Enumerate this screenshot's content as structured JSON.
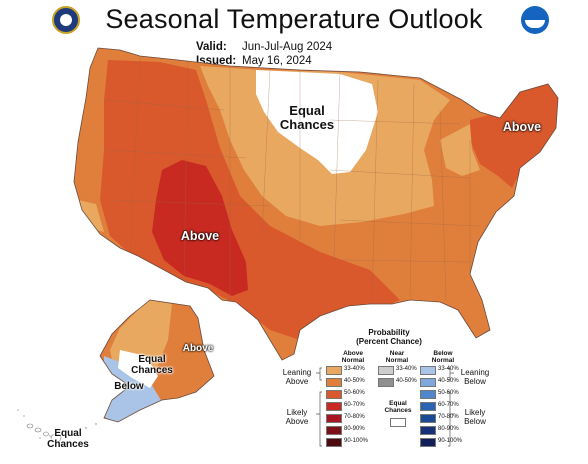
{
  "title": "Seasonal Temperature Outlook",
  "valid_label": "Valid:",
  "valid_value": "Jun-Jul-Aug 2024",
  "issued_label": "Issued:",
  "issued_value": "May 16, 2024",
  "logos": {
    "left": "doc-seal-icon",
    "right": "noaa-logo-icon"
  },
  "map_labels": {
    "equal_chances_north": [
      "Equal",
      "Chances"
    ],
    "above_northeast": "Above",
    "above_southwest": "Above",
    "alaska_above": "Above",
    "alaska_equal_chances": [
      "Equal",
      "Chances"
    ],
    "alaska_below": "Below",
    "hawaii_equal_chances": [
      "Equal",
      "Chances"
    ]
  },
  "legend": {
    "title": [
      "Probability",
      "(Percent Chance)"
    ],
    "col_above": [
      "Above",
      "Normal"
    ],
    "col_near": [
      "Near",
      "Normal"
    ],
    "col_below": [
      "Below",
      "Normal"
    ],
    "leaning_above": [
      "Leaning",
      "Above"
    ],
    "likely_above": [
      "Likely",
      "Above"
    ],
    "leaning_below": [
      "Leaning",
      "Below"
    ],
    "likely_below": [
      "Likely",
      "Below"
    ],
    "equal_chances": [
      "Equal",
      "Chances"
    ],
    "above": [
      {
        "range": "33-40%",
        "color": "#e8a860"
      },
      {
        "range": "40-50%",
        "color": "#e07e3c"
      },
      {
        "range": "50-60%",
        "color": "#d9582c"
      },
      {
        "range": "60-70%",
        "color": "#c82a22"
      },
      {
        "range": "70-80%",
        "color": "#a81520"
      },
      {
        "range": "80-90%",
        "color": "#7d0f18"
      },
      {
        "range": "90-100%",
        "color": "#4d0a0f"
      }
    ],
    "near": [
      {
        "range": "33-40%",
        "color": "#cccccc"
      },
      {
        "range": "40-50%",
        "color": "#8f8f8f"
      }
    ],
    "below": [
      {
        "range": "33-40%",
        "color": "#a9c4e6"
      },
      {
        "range": "40-50%",
        "color": "#7fa8dc"
      },
      {
        "range": "50-60%",
        "color": "#4f86cc"
      },
      {
        "range": "60-70%",
        "color": "#2b63b3"
      },
      {
        "range": "70-80%",
        "color": "#1a4a96"
      },
      {
        "range": "80-90%",
        "color": "#17307a"
      },
      {
        "range": "90-100%",
        "color": "#121e58"
      }
    ]
  }
}
